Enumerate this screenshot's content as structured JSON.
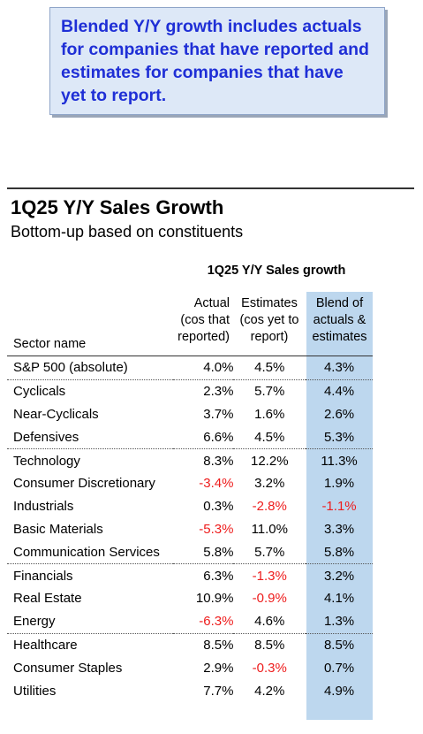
{
  "callout": {
    "text_line1": "Blended Y/Y growth includes actuals",
    "text_line2": "for companies that have reported and",
    "text_line3": "estimates for companies that have",
    "text_line4": "yet to report."
  },
  "title": "1Q25 Y/Y Sales Growth",
  "subtitle": "Bottom-up based on constituents",
  "group_header": "1Q25 Y/Y Sales growth",
  "columns": {
    "sector": "Sector name",
    "actual": [
      "Actual",
      "(cos that",
      "reported)"
    ],
    "estimates": [
      "Estimates",
      "(cos yet to",
      "report)"
    ],
    "blend": [
      "Blend of",
      "actuals &",
      "estimates"
    ]
  },
  "colors": {
    "negative": "#ee1c1c",
    "blend_highlight": "#bdd7ee",
    "callout_text": "#1f2fd6",
    "callout_bg": "#dde8f7"
  },
  "groups": [
    {
      "rows": [
        {
          "sector": "S&P 500 (absolute)",
          "actual": "4.0%",
          "estimates": "4.5%",
          "blend": "4.3%"
        }
      ]
    },
    {
      "rows": [
        {
          "sector": "Cyclicals",
          "actual": "2.3%",
          "estimates": "5.7%",
          "blend": "4.4%"
        },
        {
          "sector": "Near-Cyclicals",
          "actual": "3.7%",
          "estimates": "1.6%",
          "blend": "2.6%"
        },
        {
          "sector": "Defensives",
          "actual": "6.6%",
          "estimates": "4.5%",
          "blend": "5.3%"
        }
      ]
    },
    {
      "rows": [
        {
          "sector": "Technology",
          "actual": "8.3%",
          "estimates": "12.2%",
          "blend": "11.3%"
        },
        {
          "sector": "Consumer Discretionary",
          "actual": "-3.4%",
          "estimates": "3.2%",
          "blend": "1.9%"
        },
        {
          "sector": "Industrials",
          "actual": "0.3%",
          "estimates": "-2.8%",
          "blend": "-1.1%"
        },
        {
          "sector": "Basic Materials",
          "actual": "-5.3%",
          "estimates": "11.0%",
          "blend": "3.3%"
        },
        {
          "sector": "Communication Services",
          "actual": "5.8%",
          "estimates": "5.7%",
          "blend": "5.8%"
        }
      ]
    },
    {
      "rows": [
        {
          "sector": "Financials",
          "actual": "6.3%",
          "estimates": "-1.3%",
          "blend": "3.2%"
        },
        {
          "sector": "Real Estate",
          "actual": "10.9%",
          "estimates": "-0.9%",
          "blend": "4.1%"
        },
        {
          "sector": "Energy",
          "actual": "-6.3%",
          "estimates": "4.6%",
          "blend": "1.3%"
        }
      ]
    },
    {
      "rows": [
        {
          "sector": "Healthcare",
          "actual": "8.5%",
          "estimates": "8.5%",
          "blend": "8.5%"
        },
        {
          "sector": "Consumer Staples",
          "actual": "2.9%",
          "estimates": "-0.3%",
          "blend": "0.7%"
        },
        {
          "sector": "Utilities",
          "actual": "7.7%",
          "estimates": "4.2%",
          "blend": "4.9%"
        }
      ]
    }
  ]
}
